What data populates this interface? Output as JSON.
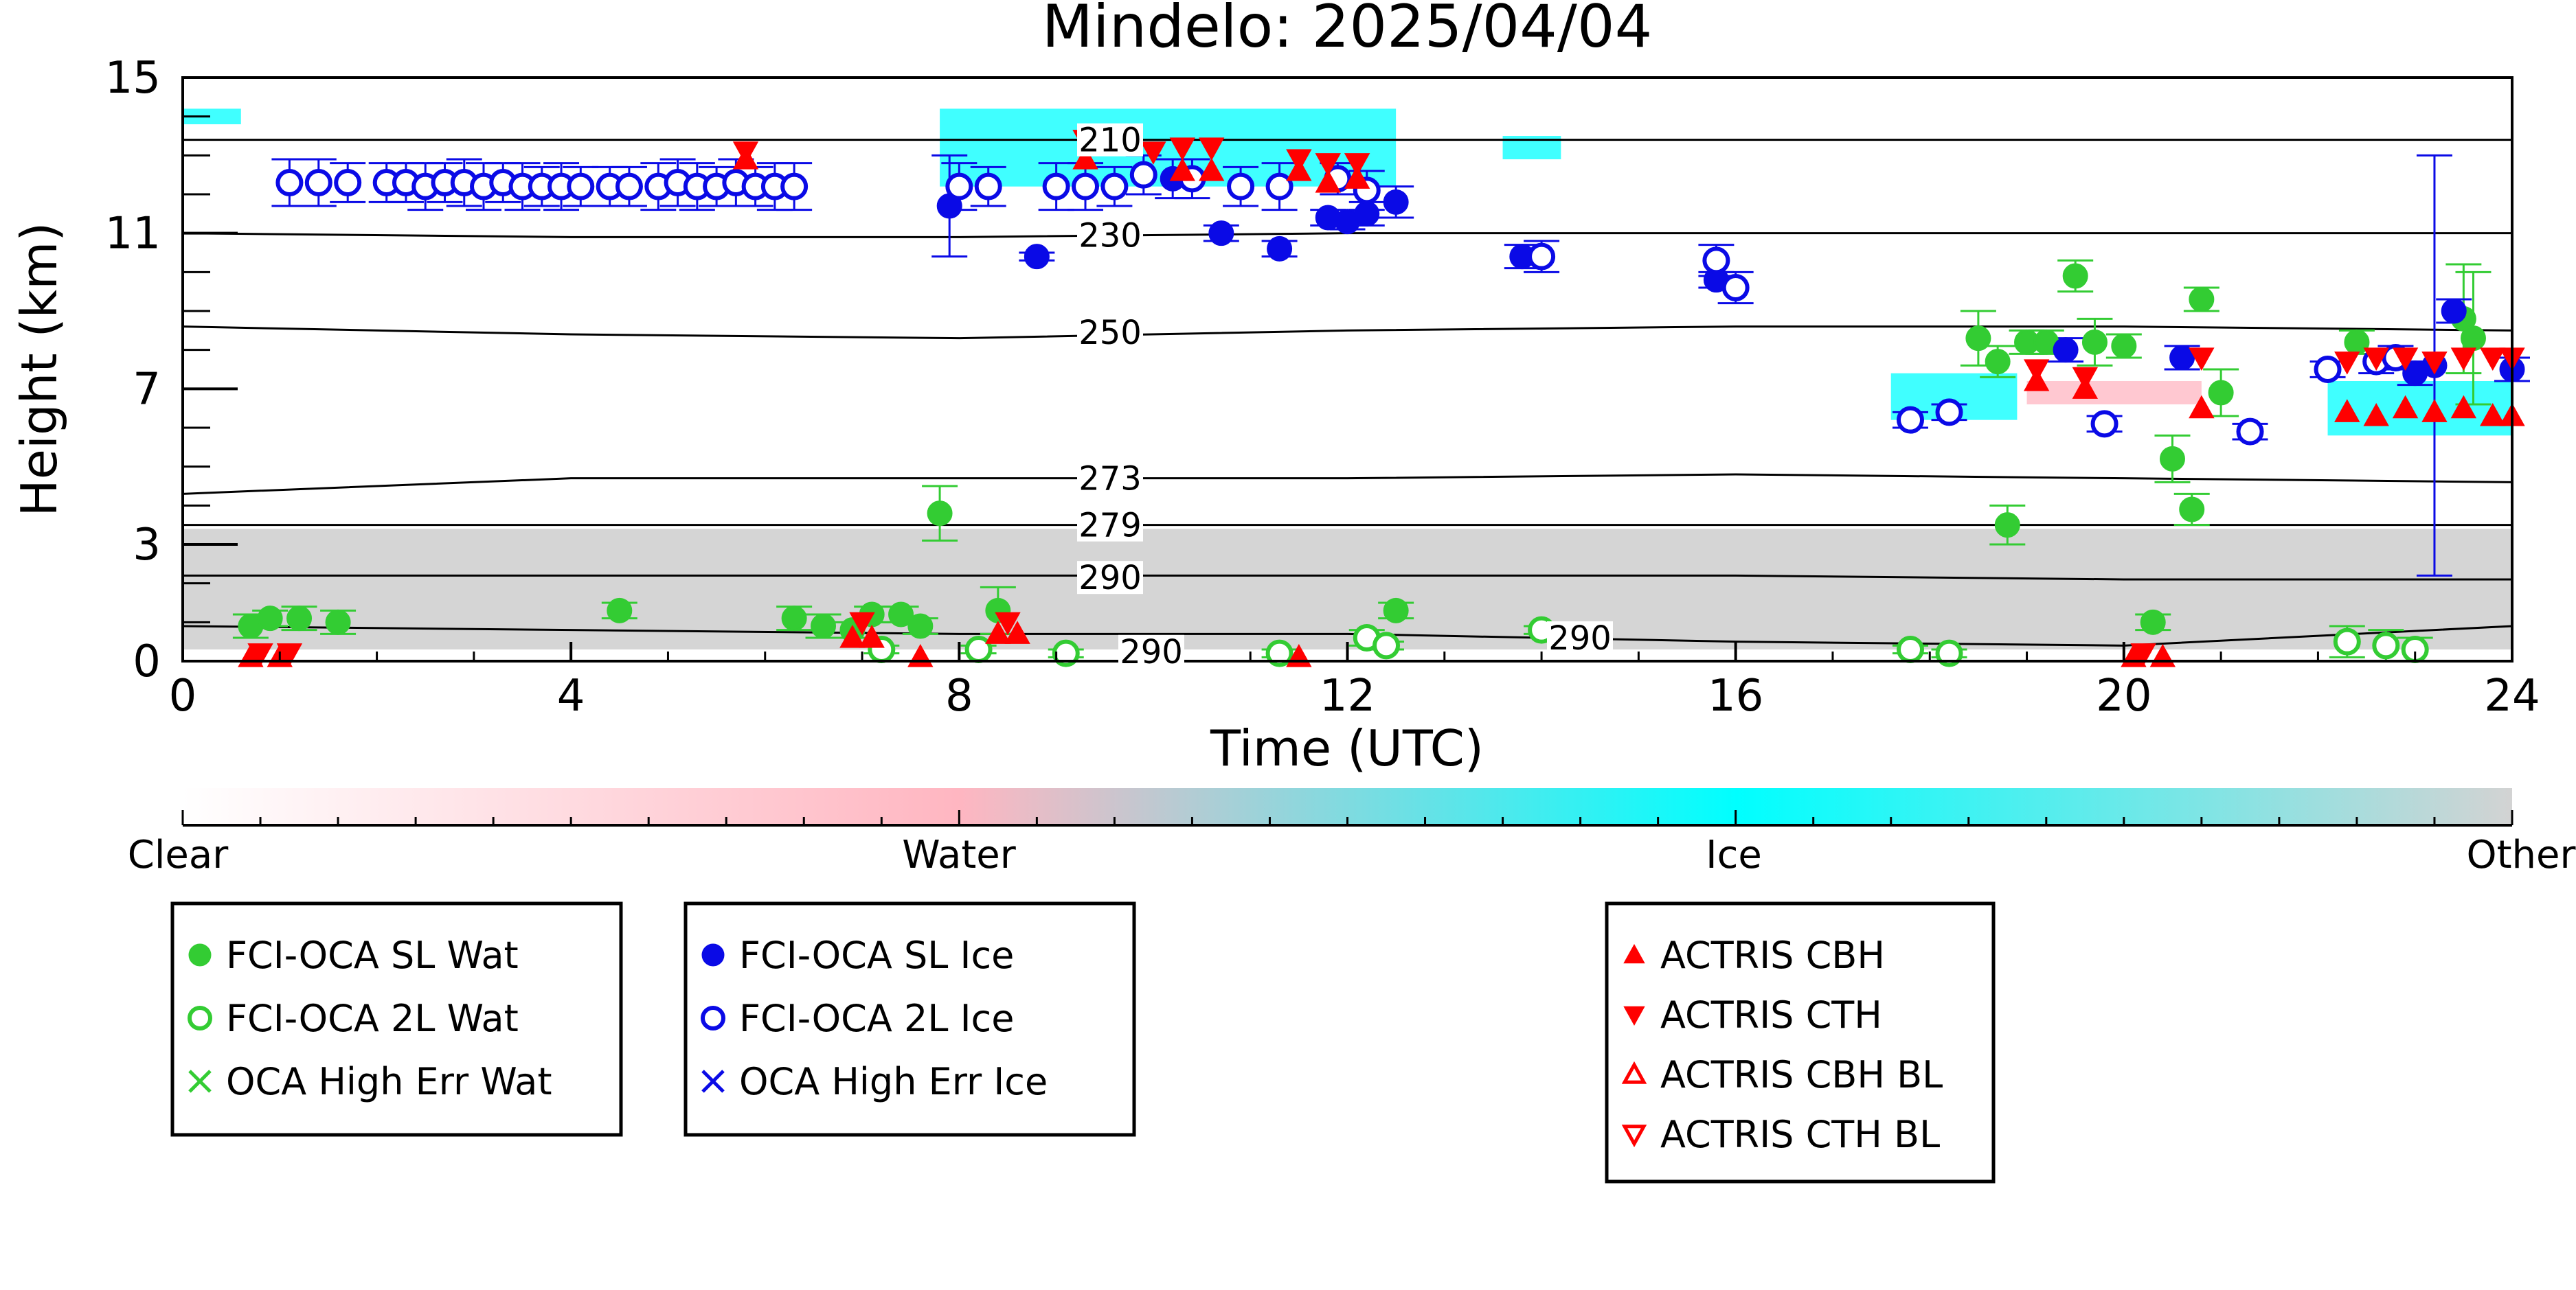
{
  "chart_data": {
    "type": "scatter",
    "title": "Mindelo: 2025/04/04",
    "xlabel": "Time (UTC)",
    "ylabel": "Height (km)",
    "xlim": [
      0,
      24
    ],
    "ylim": [
      0,
      15
    ],
    "x_ticks": [
      0,
      4,
      8,
      12,
      16,
      20,
      24
    ],
    "y_ticks": [
      0,
      3,
      7,
      11,
      15
    ],
    "grid": false,
    "colorbar": {
      "labels": [
        "Clear",
        "Water",
        "Ice",
        "Other"
      ],
      "colors": [
        "#ffffff",
        "#ffb6c1",
        "#00ffff",
        "#d3d3d3"
      ]
    },
    "isotherm_labels": [
      "210",
      "230",
      "250",
      "273",
      "279",
      "290",
      "290",
      "290"
    ],
    "isotherms": [
      {
        "label": "210",
        "y": [
          13.4,
          13.4,
          13.4,
          13.4,
          13.4,
          13.4,
          13.4
        ]
      },
      {
        "label": "230",
        "y": [
          11.0,
          10.9,
          10.9,
          11.0,
          11.0,
          11.0,
          11.0
        ]
      },
      {
        "label": "250",
        "y": [
          8.6,
          8.4,
          8.3,
          8.5,
          8.6,
          8.6,
          8.5
        ]
      },
      {
        "label": "273",
        "y": [
          4.3,
          4.7,
          4.7,
          4.7,
          4.8,
          4.7,
          4.6
        ]
      },
      {
        "label": "279",
        "y": [
          3.5,
          3.5,
          3.5,
          3.5,
          3.5,
          3.5,
          3.5
        ]
      },
      {
        "label": "290",
        "y": [
          2.2,
          2.2,
          2.2,
          2.2,
          2.2,
          2.1,
          2.1
        ]
      },
      {
        "label": "290",
        "y": [
          0.9,
          0.8,
          0.7,
          0.7,
          0.5,
          0.4,
          0.9
        ]
      }
    ],
    "cloud_regions": [
      {
        "kind": "other",
        "x0": 0,
        "x1": 24,
        "y0": 0.3,
        "y1": 3.4
      },
      {
        "kind": "ice",
        "x0": 17.6,
        "x1": 18.9,
        "y0": 6.2,
        "y1": 7.4
      },
      {
        "kind": "water",
        "x0": 19.0,
        "x1": 20.8,
        "y0": 6.6,
        "y1": 7.2
      },
      {
        "kind": "ice",
        "x0": 22.1,
        "x1": 24,
        "y0": 5.8,
        "y1": 7.2
      },
      {
        "kind": "ice",
        "x0": 7.8,
        "x1": 12.5,
        "y0": 12.2,
        "y1": 14.2
      },
      {
        "kind": "ice",
        "x0": 0.0,
        "x1": 0.6,
        "y0": 13.8,
        "y1": 14.2
      },
      {
        "kind": "ice",
        "x0": 13.6,
        "x1": 14.2,
        "y0": 12.9,
        "y1": 13.5
      }
    ],
    "series": [
      {
        "name": "FCI-OCA SL Wat",
        "color": "#33cc33",
        "marker": "circle-filled",
        "points": [
          {
            "x": 0.7,
            "y": 0.9,
            "err": 0.3
          },
          {
            "x": 0.9,
            "y": 1.1,
            "err": 0.2
          },
          {
            "x": 1.2,
            "y": 1.1,
            "err": 0.3
          },
          {
            "x": 1.6,
            "y": 1.0,
            "err": 0.3
          },
          {
            "x": 4.5,
            "y": 1.3,
            "err": 0.2
          },
          {
            "x": 6.3,
            "y": 1.1,
            "err": 0.3
          },
          {
            "x": 6.6,
            "y": 0.9,
            "err": 0.3
          },
          {
            "x": 6.9,
            "y": 0.8,
            "err": 0.2
          },
          {
            "x": 7.1,
            "y": 1.2,
            "err": 0.2
          },
          {
            "x": 7.4,
            "y": 1.2,
            "err": 0.2
          },
          {
            "x": 7.6,
            "y": 0.9,
            "err": 0.2
          },
          {
            "x": 7.8,
            "y": 3.8,
            "err": 0.7
          },
          {
            "x": 8.4,
            "y": 1.3,
            "err": 0.6
          },
          {
            "x": 12.5,
            "y": 1.3,
            "err": 0.2
          },
          {
            "x": 18.5,
            "y": 8.3,
            "err": 0.7
          },
          {
            "x": 18.7,
            "y": 7.7,
            "err": 0.4
          },
          {
            "x": 18.8,
            "y": 3.5,
            "err": 0.5
          },
          {
            "x": 19.0,
            "y": 8.2,
            "err": 0.3
          },
          {
            "x": 19.2,
            "y": 8.2,
            "err": 0.3
          },
          {
            "x": 19.5,
            "y": 9.9,
            "err": 0.4
          },
          {
            "x": 19.7,
            "y": 8.2,
            "err": 0.6
          },
          {
            "x": 20.0,
            "y": 8.1,
            "err": 0.3
          },
          {
            "x": 20.3,
            "y": 1.0,
            "err": 0.2
          },
          {
            "x": 20.5,
            "y": 5.2,
            "err": 0.6
          },
          {
            "x": 20.7,
            "y": 3.9,
            "err": 0.4
          },
          {
            "x": 20.8,
            "y": 9.3,
            "err": 0.3
          },
          {
            "x": 21.0,
            "y": 6.9,
            "err": 0.6
          },
          {
            "x": 22.4,
            "y": 8.2,
            "err": 0.3
          },
          {
            "x": 23.5,
            "y": 8.8,
            "err": 1.4
          },
          {
            "x": 23.6,
            "y": 8.3,
            "err": 1.7
          }
        ]
      },
      {
        "name": "FCI-OCA 2L Wat",
        "color": "#33cc33",
        "marker": "circle-open",
        "points": [
          {
            "x": 7.2,
            "y": 0.3,
            "err": 0.1
          },
          {
            "x": 8.2,
            "y": 0.3,
            "err": 0.1
          },
          {
            "x": 9.1,
            "y": 0.2,
            "err": 0.1
          },
          {
            "x": 11.3,
            "y": 0.2,
            "err": 0.1
          },
          {
            "x": 12.2,
            "y": 0.6,
            "err": 0.2
          },
          {
            "x": 12.4,
            "y": 0.4,
            "err": 0.1
          },
          {
            "x": 14.0,
            "y": 0.8,
            "err": 0.1
          },
          {
            "x": 17.8,
            "y": 0.3,
            "err": 0.1
          },
          {
            "x": 18.2,
            "y": 0.2,
            "err": 0.1
          },
          {
            "x": 22.3,
            "y": 0.5,
            "err": 0.4
          },
          {
            "x": 22.7,
            "y": 0.4,
            "err": 0.4
          },
          {
            "x": 23.0,
            "y": 0.3,
            "err": 0.3
          }
        ]
      },
      {
        "name": "OCA High Err Wat",
        "color": "#33cc33",
        "marker": "x",
        "points": []
      },
      {
        "name": "FCI-OCA SL Ice",
        "color": "#0a0ae6",
        "marker": "circle-filled",
        "points": [
          {
            "x": 7.9,
            "y": 11.7,
            "err": 1.3
          },
          {
            "x": 8.8,
            "y": 10.4,
            "err": 0.1
          },
          {
            "x": 9.4,
            "y": 11.0,
            "err": 0.1
          },
          {
            "x": 10.2,
            "y": 12.4,
            "err": 0.5
          },
          {
            "x": 10.7,
            "y": 11.0,
            "err": 0.2
          },
          {
            "x": 11.3,
            "y": 10.6,
            "err": 0.2
          },
          {
            "x": 11.8,
            "y": 11.4,
            "err": 0.2
          },
          {
            "x": 12.0,
            "y": 11.3,
            "err": 0.2
          },
          {
            "x": 12.2,
            "y": 11.5,
            "err": 0.3
          },
          {
            "x": 12.5,
            "y": 11.8,
            "err": 0.4
          },
          {
            "x": 13.8,
            "y": 10.4,
            "err": 0.3
          },
          {
            "x": 15.8,
            "y": 9.8,
            "err": 0.2
          },
          {
            "x": 19.4,
            "y": 8.0,
            "err": 0.3
          },
          {
            "x": 20.6,
            "y": 7.8,
            "err": 0.3
          },
          {
            "x": 23.0,
            "y": 7.4,
            "err": 0.3
          },
          {
            "x": 23.2,
            "y": 7.6,
            "err": 5.4
          },
          {
            "x": 23.4,
            "y": 9.0,
            "err": 0.3
          },
          {
            "x": 24.0,
            "y": 7.5,
            "err": 0.3
          }
        ]
      },
      {
        "name": "FCI-OCA 2L Ice",
        "color": "#0a0ae6",
        "marker": "circle-open",
        "points": [
          {
            "x": 1.1,
            "y": 12.3,
            "err": 0.6
          },
          {
            "x": 1.4,
            "y": 12.3,
            "err": 0.6
          },
          {
            "x": 1.7,
            "y": 12.3,
            "err": 0.5
          },
          {
            "x": 2.1,
            "y": 12.3,
            "err": 0.5
          },
          {
            "x": 2.3,
            "y": 12.3,
            "err": 0.5
          },
          {
            "x": 2.5,
            "y": 12.2,
            "err": 0.6
          },
          {
            "x": 2.7,
            "y": 12.3,
            "err": 0.5
          },
          {
            "x": 2.9,
            "y": 12.3,
            "err": 0.6
          },
          {
            "x": 3.1,
            "y": 12.2,
            "err": 0.6
          },
          {
            "x": 3.3,
            "y": 12.3,
            "err": 0.5
          },
          {
            "x": 3.5,
            "y": 12.2,
            "err": 0.6
          },
          {
            "x": 3.7,
            "y": 12.2,
            "err": 0.5
          },
          {
            "x": 3.9,
            "y": 12.2,
            "err": 0.6
          },
          {
            "x": 4.1,
            "y": 12.2,
            "err": 0.5
          },
          {
            "x": 4.4,
            "y": 12.2,
            "err": 0.5
          },
          {
            "x": 4.6,
            "y": 12.2,
            "err": 0.5
          },
          {
            "x": 4.9,
            "y": 12.2,
            "err": 0.6
          },
          {
            "x": 5.1,
            "y": 12.3,
            "err": 0.6
          },
          {
            "x": 5.3,
            "y": 12.2,
            "err": 0.6
          },
          {
            "x": 5.5,
            "y": 12.2,
            "err": 0.5
          },
          {
            "x": 5.7,
            "y": 12.3,
            "err": 0.6
          },
          {
            "x": 5.9,
            "y": 12.2,
            "err": 0.5
          },
          {
            "x": 6.1,
            "y": 12.2,
            "err": 0.6
          },
          {
            "x": 6.3,
            "y": 12.2,
            "err": 0.6
          },
          {
            "x": 8.0,
            "y": 12.2,
            "err": 0.6
          },
          {
            "x": 8.3,
            "y": 12.2,
            "err": 0.5
          },
          {
            "x": 9.0,
            "y": 12.2,
            "err": 0.6
          },
          {
            "x": 9.3,
            "y": 12.2,
            "err": 0.6
          },
          {
            "x": 9.6,
            "y": 12.2,
            "err": 0.5
          },
          {
            "x": 9.9,
            "y": 12.5,
            "err": 0.5
          },
          {
            "x": 10.4,
            "y": 12.4,
            "err": 0.5
          },
          {
            "x": 10.9,
            "y": 12.2,
            "err": 0.5
          },
          {
            "x": 11.3,
            "y": 12.2,
            "err": 0.6
          },
          {
            "x": 11.9,
            "y": 12.4,
            "err": 0.4
          },
          {
            "x": 12.2,
            "y": 12.1,
            "err": 0.5
          },
          {
            "x": 14.0,
            "y": 10.4,
            "err": 0.4
          },
          {
            "x": 15.8,
            "y": 10.3,
            "err": 0.4
          },
          {
            "x": 16.0,
            "y": 9.6,
            "err": 0.4
          },
          {
            "x": 17.8,
            "y": 6.2,
            "err": 0.2
          },
          {
            "x": 18.2,
            "y": 6.4,
            "err": 0.2
          },
          {
            "x": 19.8,
            "y": 6.1,
            "err": 0.2
          },
          {
            "x": 21.3,
            "y": 5.9,
            "err": 0.2
          },
          {
            "x": 22.1,
            "y": 7.5,
            "err": 0.2
          },
          {
            "x": 22.6,
            "y": 7.7,
            "err": 0.3
          },
          {
            "x": 22.8,
            "y": 7.8,
            "err": 0.3
          }
        ]
      },
      {
        "name": "OCA High Err Ice",
        "color": "#0a0ae6",
        "marker": "x",
        "points": []
      },
      {
        "name": "ACTRIS CBH",
        "color": "#ff0000",
        "marker": "triangle-up-filled",
        "points": [
          {
            "x": 5.8,
            "y": 12.9
          },
          {
            "x": 9.3,
            "y": 12.9
          },
          {
            "x": 10.3,
            "y": 12.6
          },
          {
            "x": 10.6,
            "y": 12.6
          },
          {
            "x": 11.5,
            "y": 12.6
          },
          {
            "x": 11.8,
            "y": 12.3
          },
          {
            "x": 12.1,
            "y": 12.4
          },
          {
            "x": 19.1,
            "y": 7.2
          },
          {
            "x": 19.6,
            "y": 7.0
          },
          {
            "x": 20.8,
            "y": 6.5
          },
          {
            "x": 22.3,
            "y": 6.4
          },
          {
            "x": 22.6,
            "y": 6.3
          },
          {
            "x": 22.9,
            "y": 6.5
          },
          {
            "x": 23.2,
            "y": 6.4
          },
          {
            "x": 23.5,
            "y": 6.5
          },
          {
            "x": 23.8,
            "y": 6.3
          },
          {
            "x": 24.0,
            "y": 6.3
          },
          {
            "x": 0.7,
            "y": 0.1
          },
          {
            "x": 1.0,
            "y": 0.1
          },
          {
            "x": 6.9,
            "y": 0.6
          },
          {
            "x": 7.1,
            "y": 0.6
          },
          {
            "x": 7.6,
            "y": 0.1
          },
          {
            "x": 8.4,
            "y": 0.7
          },
          {
            "x": 8.6,
            "y": 0.7
          },
          {
            "x": 11.5,
            "y": 0.1
          },
          {
            "x": 20.1,
            "y": 0.1
          },
          {
            "x": 20.4,
            "y": 0.1
          }
        ]
      },
      {
        "name": "ACTRIS CTH",
        "color": "#ff0000",
        "marker": "triangle-down-filled",
        "points": [
          {
            "x": 5.8,
            "y": 13.1
          },
          {
            "x": 9.3,
            "y": 13.4
          },
          {
            "x": 10.0,
            "y": 13.1
          },
          {
            "x": 10.3,
            "y": 13.2
          },
          {
            "x": 10.6,
            "y": 13.2
          },
          {
            "x": 11.5,
            "y": 12.9
          },
          {
            "x": 11.8,
            "y": 12.8
          },
          {
            "x": 12.1,
            "y": 12.8
          },
          {
            "x": 19.1,
            "y": 7.5
          },
          {
            "x": 19.6,
            "y": 7.3
          },
          {
            "x": 20.8,
            "y": 7.8
          },
          {
            "x": 22.3,
            "y": 7.7
          },
          {
            "x": 22.6,
            "y": 7.8
          },
          {
            "x": 22.9,
            "y": 7.8
          },
          {
            "x": 23.2,
            "y": 7.7
          },
          {
            "x": 23.5,
            "y": 7.8
          },
          {
            "x": 23.8,
            "y": 7.8
          },
          {
            "x": 24.0,
            "y": 7.8
          },
          {
            "x": 0.8,
            "y": 0.2
          },
          {
            "x": 1.1,
            "y": 0.2
          },
          {
            "x": 7.0,
            "y": 1.0
          },
          {
            "x": 8.5,
            "y": 1.0
          },
          {
            "x": 20.2,
            "y": 0.2
          }
        ]
      },
      {
        "name": "ACTRIS CBH BL",
        "color": "#ff0000",
        "marker": "triangle-up-open",
        "points": []
      },
      {
        "name": "ACTRIS CTH BL",
        "color": "#ff0000",
        "marker": "triangle-down-open",
        "points": []
      }
    ],
    "legend_groups": [
      {
        "placement": "below-left",
        "items": [
          "FCI-OCA SL Wat",
          "FCI-OCA 2L Wat",
          "OCA High Err Wat"
        ]
      },
      {
        "placement": "below-center-left",
        "items": [
          "FCI-OCA SL Ice",
          "FCI-OCA 2L Ice",
          "OCA High Err Ice"
        ]
      },
      {
        "placement": "below-center-right",
        "items": [
          "ACTRIS CBH",
          "ACTRIS CTH",
          "ACTRIS CBH BL",
          "ACTRIS CTH BL"
        ]
      }
    ]
  }
}
